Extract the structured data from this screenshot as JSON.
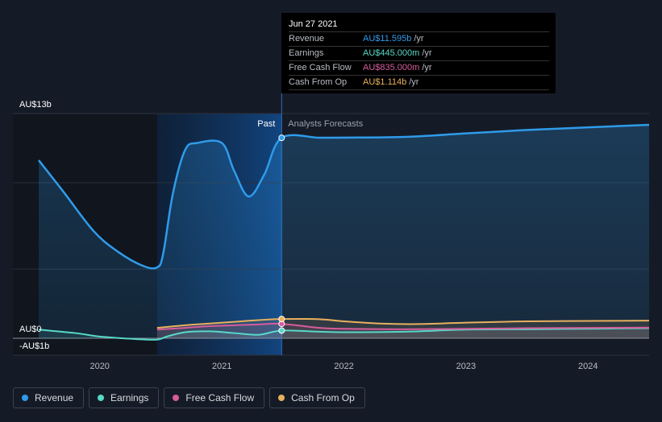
{
  "chart_data": {
    "type": "line",
    "y_axis": {
      "min": -1,
      "max": 13,
      "unit": "AU$b",
      "labels": [
        "AU$13b",
        "AU$0",
        "-AU$1b"
      ]
    },
    "x_axis": {
      "min": 2019.45,
      "max": 2024.5,
      "tick_labels": [
        "2020",
        "2021",
        "2022",
        "2023",
        "2024"
      ],
      "ticks": [
        2020,
        2021,
        2022,
        2023,
        2024
      ]
    },
    "past_label": "Past",
    "forecast_label": "Analysts Forecasts",
    "divider_x": 2021.49,
    "highlight_start": 2020.47,
    "series": [
      {
        "name": "Revenue",
        "color": "#2f9bea",
        "points": [
          [
            2019.5,
            10.3
          ],
          [
            2019.7,
            8.5
          ],
          [
            2019.95,
            6.2
          ],
          [
            2020.15,
            5.0
          ],
          [
            2020.35,
            4.2
          ],
          [
            2020.47,
            4.1
          ],
          [
            2020.52,
            4.9
          ],
          [
            2020.6,
            8.4
          ],
          [
            2020.7,
            10.9
          ],
          [
            2020.8,
            11.3
          ],
          [
            2021.0,
            11.3
          ],
          [
            2021.1,
            9.7
          ],
          [
            2021.22,
            8.2
          ],
          [
            2021.35,
            9.5
          ],
          [
            2021.49,
            11.595
          ],
          [
            2021.8,
            11.6
          ],
          [
            2022.0,
            11.61
          ],
          [
            2022.5,
            11.65
          ],
          [
            2023.0,
            11.85
          ],
          [
            2023.5,
            12.05
          ],
          [
            2024.0,
            12.2
          ],
          [
            2024.5,
            12.35
          ]
        ]
      },
      {
        "name": "Earnings",
        "color": "#58d8c8",
        "points": [
          [
            2019.5,
            0.5
          ],
          [
            2019.8,
            0.3
          ],
          [
            2020.0,
            0.1
          ],
          [
            2020.3,
            -0.05
          ],
          [
            2020.47,
            -0.08
          ],
          [
            2020.55,
            0.1
          ],
          [
            2020.7,
            0.35
          ],
          [
            2020.9,
            0.4
          ],
          [
            2021.1,
            0.3
          ],
          [
            2021.3,
            0.2
          ],
          [
            2021.49,
            0.445
          ],
          [
            2021.8,
            0.38
          ],
          [
            2022.0,
            0.35
          ],
          [
            2022.5,
            0.38
          ],
          [
            2023.0,
            0.5
          ],
          [
            2023.5,
            0.52
          ],
          [
            2024.0,
            0.55
          ],
          [
            2024.5,
            0.58
          ]
        ]
      },
      {
        "name": "Free Cash Flow",
        "color": "#d65c9c",
        "points": [
          [
            2020.47,
            0.5
          ],
          [
            2020.7,
            0.6
          ],
          [
            2020.9,
            0.7
          ],
          [
            2021.1,
            0.75
          ],
          [
            2021.3,
            0.8
          ],
          [
            2021.49,
            0.835
          ],
          [
            2021.8,
            0.6
          ],
          [
            2022.0,
            0.55
          ],
          [
            2022.5,
            0.52
          ],
          [
            2023.0,
            0.55
          ],
          [
            2023.5,
            0.58
          ],
          [
            2024.0,
            0.6
          ],
          [
            2024.5,
            0.62
          ]
        ]
      },
      {
        "name": "Cash From Op",
        "color": "#e8b05e",
        "points": [
          [
            2020.47,
            0.6
          ],
          [
            2020.7,
            0.75
          ],
          [
            2020.9,
            0.85
          ],
          [
            2021.1,
            0.95
          ],
          [
            2021.3,
            1.05
          ],
          [
            2021.49,
            1.114
          ],
          [
            2021.8,
            1.1
          ],
          [
            2022.0,
            0.98
          ],
          [
            2022.3,
            0.85
          ],
          [
            2022.6,
            0.82
          ],
          [
            2023.0,
            0.9
          ],
          [
            2023.5,
            0.98
          ],
          [
            2024.0,
            1.0
          ],
          [
            2024.5,
            1.02
          ]
        ]
      }
    ],
    "tooltip": {
      "date": "Jun 27 2021",
      "rows": [
        {
          "label": "Revenue",
          "value": "AU$11.595b",
          "unit": "/yr",
          "color": "#2f9bea"
        },
        {
          "label": "Earnings",
          "value": "AU$445.000m",
          "unit": "/yr",
          "color": "#58d8c8"
        },
        {
          "label": "Free Cash Flow",
          "value": "AU$835.000m",
          "unit": "/yr",
          "color": "#d65c9c"
        },
        {
          "label": "Cash From Op",
          "value": "AU$1.114b",
          "unit": "/yr",
          "color": "#e8b05e"
        }
      ]
    }
  },
  "legend": [
    {
      "label": "Revenue",
      "color": "#2f9bea"
    },
    {
      "label": "Earnings",
      "color": "#58d8c8"
    },
    {
      "label": "Free Cash Flow",
      "color": "#d65c9c"
    },
    {
      "label": "Cash From Op",
      "color": "#e8b05e"
    }
  ]
}
